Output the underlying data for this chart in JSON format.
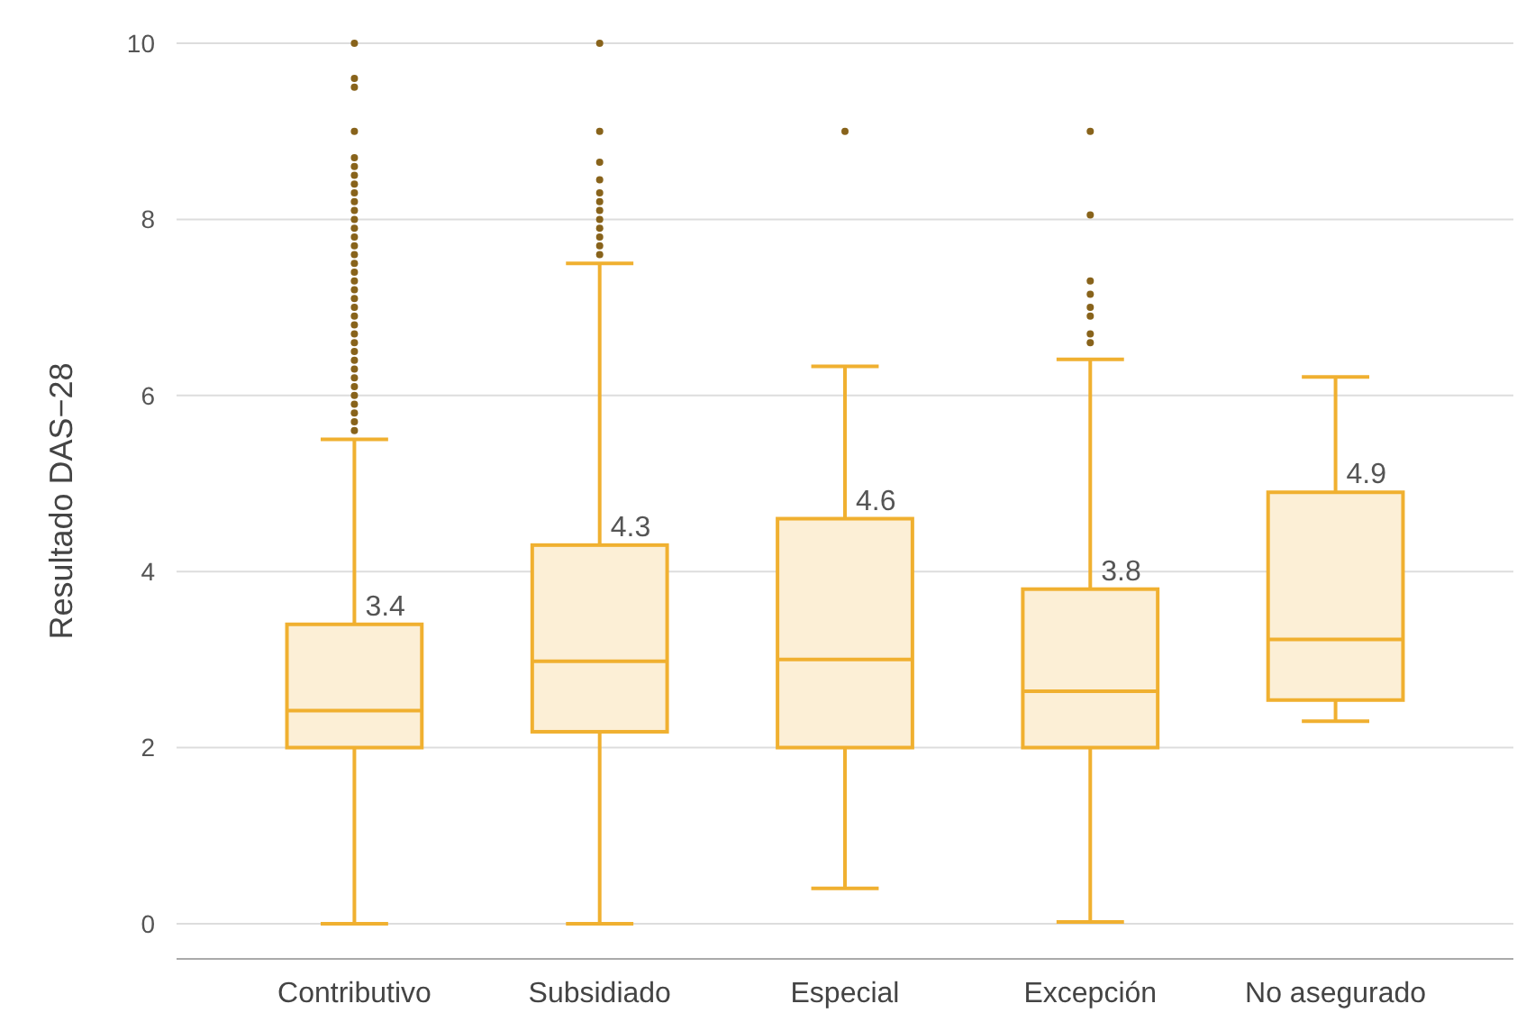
{
  "chart_data": {
    "type": "box",
    "ylabel": "Resultado DAS−28",
    "categories": [
      "Contributivo",
      "Subsidiado",
      "Especial",
      "Excepción",
      "No asegurado"
    ],
    "series": [
      {
        "color": "#f0b030",
        "boxes": [
          {
            "low": 0,
            "q1": 2.0,
            "median": 2.42,
            "q3": 3.4,
            "high": 5.5,
            "outliers": [
              10,
              9.6,
              9.5,
              9.0,
              8.7,
              8.6,
              8.5,
              8.4,
              8.3,
              8.2,
              8.1,
              8.0,
              7.9,
              7.8,
              7.7,
              7.6,
              7.5,
              7.4,
              7.3,
              7.2,
              7.1,
              7.0,
              6.9,
              6.8,
              6.7,
              6.6,
              6.5,
              6.4,
              6.3,
              6.2,
              6.1,
              6.0,
              5.9,
              5.8,
              5.7,
              5.6
            ]
          },
          {
            "low": 0,
            "q1": 2.18,
            "median": 2.98,
            "q3": 4.3,
            "high": 7.5,
            "outliers": [
              10,
              9.0,
              8.65,
              8.45,
              8.3,
              8.2,
              8.1,
              8.0,
              7.9,
              7.8,
              7.7,
              7.6
            ]
          },
          {
            "low": 0.4,
            "q1": 2.0,
            "median": 3.0,
            "q3": 4.6,
            "high": 6.33,
            "outliers": [
              9.0
            ]
          },
          {
            "low": 0.02,
            "q1": 2.0,
            "median": 2.64,
            "q3": 3.8,
            "high": 6.41,
            "outliers": [
              9.0,
              8.05,
              7.3,
              7.15,
              7.0,
              6.9,
              6.7,
              6.6
            ]
          },
          {
            "low": 2.3,
            "q1": 2.54,
            "median": 3.23,
            "q3": 4.9,
            "high": 6.21
          }
        ]
      }
    ],
    "ylim": [
      -0.4,
      10
    ],
    "yticks": [
      0,
      2,
      4,
      6,
      8,
      10
    ],
    "grid": "y",
    "annotations": [
      {
        "text": "3.4",
        "x": "Contributivo",
        "y": 3.4
      },
      {
        "text": "4.3",
        "x": "Subsidiado",
        "y": 4.3
      },
      {
        "text": "4.6",
        "x": "Especial",
        "y": 4.6
      },
      {
        "text": "3.8",
        "x": "Excepción",
        "y": 3.8
      },
      {
        "text": "4.9",
        "x": "No asegurado",
        "y": 4.9
      }
    ]
  }
}
